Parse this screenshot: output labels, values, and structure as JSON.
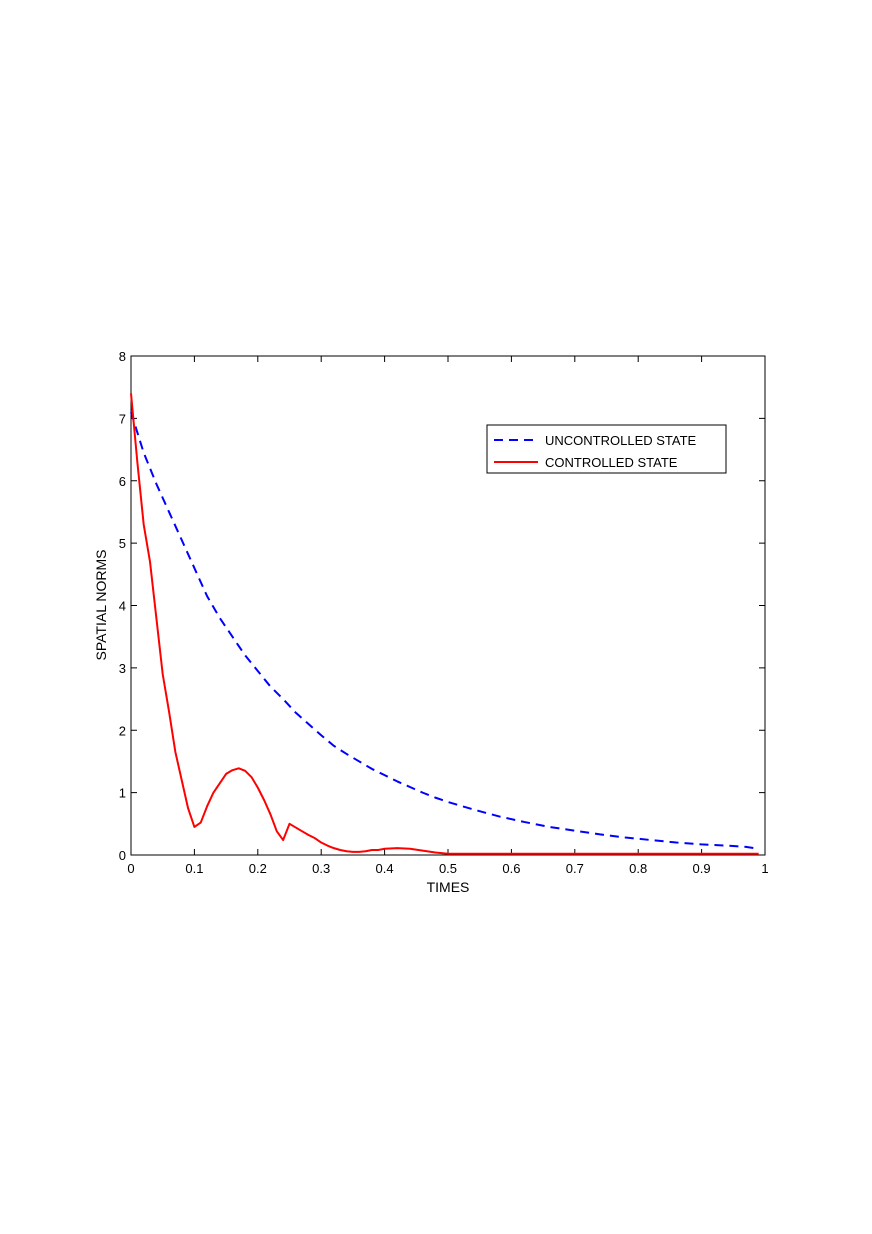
{
  "chart_data": {
    "type": "line",
    "title": "",
    "xlabel": "TIMES",
    "ylabel": "SPATIAL NORMS",
    "xlim": [
      0,
      1
    ],
    "ylim": [
      0,
      8
    ],
    "xticks": [
      "0",
      "0.1",
      "0.2",
      "0.3",
      "0.4",
      "0.5",
      "0.6",
      "0.7",
      "0.8",
      "0.9",
      "1"
    ],
    "yticks": [
      "0",
      "1",
      "2",
      "3",
      "4",
      "5",
      "6",
      "7",
      "8"
    ],
    "grid": false,
    "legend_position": "top-right",
    "series": [
      {
        "name": "UNCONTROLLED STATE",
        "color": "#0000ff",
        "style": "dashed",
        "x": [
          0,
          0.02,
          0.04,
          0.06,
          0.08,
          0.1,
          0.12,
          0.14,
          0.16,
          0.18,
          0.2,
          0.22,
          0.24,
          0.26,
          0.28,
          0.3,
          0.32,
          0.34,
          0.36,
          0.38,
          0.4,
          0.42,
          0.44,
          0.46,
          0.48,
          0.5,
          0.54,
          0.58,
          0.62,
          0.66,
          0.7,
          0.74,
          0.78,
          0.82,
          0.86,
          0.9,
          0.94,
          0.97,
          0.99
        ],
        "y": [
          7.1,
          6.45,
          5.95,
          5.5,
          5.05,
          4.6,
          4.15,
          3.8,
          3.5,
          3.2,
          2.95,
          2.7,
          2.5,
          2.28,
          2.1,
          1.92,
          1.75,
          1.62,
          1.5,
          1.38,
          1.28,
          1.18,
          1.09,
          1.0,
          0.92,
          0.85,
          0.73,
          0.62,
          0.53,
          0.45,
          0.39,
          0.33,
          0.28,
          0.24,
          0.2,
          0.17,
          0.15,
          0.13,
          0.1
        ]
      },
      {
        "name": "CONTROLLED STATE",
        "color": "#ff0000",
        "style": "solid",
        "x": [
          0,
          0.01,
          0.02,
          0.03,
          0.04,
          0.05,
          0.06,
          0.07,
          0.08,
          0.09,
          0.1,
          0.11,
          0.12,
          0.13,
          0.14,
          0.15,
          0.16,
          0.17,
          0.18,
          0.19,
          0.2,
          0.21,
          0.22,
          0.23,
          0.24,
          0.25,
          0.26,
          0.27,
          0.28,
          0.29,
          0.3,
          0.31,
          0.32,
          0.33,
          0.34,
          0.35,
          0.36,
          0.37,
          0.38,
          0.39,
          0.4,
          0.42,
          0.44,
          0.46,
          0.48,
          0.5,
          0.55,
          0.6,
          0.7,
          0.8,
          0.9,
          0.99
        ],
        "y": [
          7.4,
          6.3,
          5.3,
          4.7,
          3.8,
          2.9,
          2.3,
          1.65,
          1.2,
          0.75,
          0.45,
          0.52,
          0.78,
          1.0,
          1.15,
          1.3,
          1.36,
          1.39,
          1.35,
          1.25,
          1.08,
          0.88,
          0.65,
          0.38,
          0.24,
          0.5,
          0.44,
          0.38,
          0.32,
          0.27,
          0.2,
          0.15,
          0.11,
          0.08,
          0.06,
          0.05,
          0.05,
          0.06,
          0.08,
          0.08,
          0.1,
          0.11,
          0.1,
          0.07,
          0.04,
          0.02,
          0.02,
          0.02,
          0.02,
          0.02,
          0.02,
          0.02
        ]
      }
    ]
  }
}
